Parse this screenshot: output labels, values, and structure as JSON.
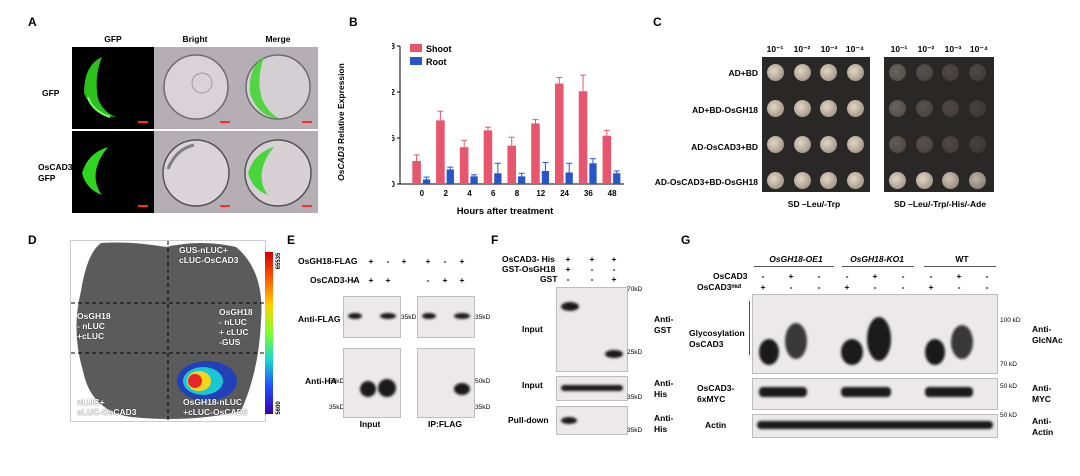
{
  "panels": {
    "a": "A",
    "b": "B",
    "c": "C",
    "d": "D",
    "e": "E",
    "f": "F",
    "g": "G"
  },
  "panel_a": {
    "columns": [
      "GFP",
      "Bright",
      "Merge"
    ],
    "rows": [
      "GFP",
      "OsCAD3-\nGFP"
    ],
    "colors": {
      "gfp": "#2fd61f",
      "scale_bar": "#ff2b2b"
    }
  },
  "chart_data": {
    "type": "bar",
    "title": "",
    "xlabel": "Hours after treatment",
    "ylabel": "OsCAD3 Relative Expression",
    "ylabel_italic_part": "OsCAD3",
    "ylabel_rest": " Relative Expression",
    "categories": [
      "0",
      "2",
      "4",
      "6",
      "8",
      "12",
      "24",
      "36",
      "48"
    ],
    "ylim": [
      0,
      0.018
    ],
    "yticks": [
      "0.000",
      "0.006",
      "0.012",
      "0.018"
    ],
    "ytick_values": [
      0,
      0.006,
      0.012,
      0.018
    ],
    "legend_position": "top-left",
    "series": [
      {
        "name": "Shoot",
        "color": "#e8566d",
        "values": [
          0.003,
          0.0083,
          0.0048,
          0.007,
          0.005,
          0.0079,
          0.0131,
          0.0121,
          0.0063
        ],
        "errors": [
          0.0008,
          0.0012,
          0.0009,
          0.0004,
          0.0011,
          0.0005,
          0.0008,
          0.0021,
          0.0007
        ]
      },
      {
        "name": "Root",
        "color": "#2855c9",
        "values": [
          0.0006,
          0.0019,
          0.001,
          0.0014,
          0.001,
          0.0017,
          0.0015,
          0.0027,
          0.0014
        ],
        "errors": [
          0.0003,
          0.0003,
          0.0002,
          0.0013,
          0.0004,
          0.0011,
          0.0012,
          0.0006,
          0.0003
        ]
      }
    ]
  },
  "panel_c": {
    "dilutions": [
      "10⁻¹",
      "10⁻²",
      "10⁻³",
      "10⁻⁴"
    ],
    "rows": [
      "AD+BD",
      "AD+BD-OsGH18",
      "AD-OsCAD3+BD",
      "AD-OsCAD3+BD-OsGH18"
    ],
    "media": [
      "SD –Leu/-Trp",
      "SD –Leu/-Trp/-His/-Ade"
    ]
  },
  "panel_d": {
    "top_right": "GUS-nLUC+\ncLUC-OsCAD3",
    "mid_left": "OsGH18\n- nLUC\n+cLUC",
    "mid_right": "OsGH18\n- nLUC\n+ cLUC\n-GUS",
    "bottom_left": "nLUC+\ncLUC-OsCAD3",
    "bottom_right": "OsGH18-nLUC\n+cLUC-OsCAD3",
    "colorbar_max": "65535",
    "colorbar_min": "5600"
  },
  "panel_e": {
    "row1_label": "OsGH18-FLAG",
    "row2_label": "OsCAD3-HA",
    "row1_signs": [
      "+",
      "-",
      "+",
      "+",
      "-",
      "+"
    ],
    "row2_signs": [
      "-",
      "+",
      "+",
      "-",
      "+",
      "+"
    ],
    "blot1_label": "Anti-FLAG",
    "blot2_label": "Anti-HA",
    "mw_35": "35kD",
    "mw_50": "50kD",
    "input": "Input",
    "ip": "IP:FLAG"
  },
  "panel_f": {
    "row1_label": "OsCAD3- His",
    "row2_label": "GST-OsGH18",
    "row3_label": "GST",
    "row1_signs": [
      "+",
      "+",
      "+"
    ],
    "row2_signs": [
      "+",
      "-",
      "-"
    ],
    "row3_signs": [
      "-",
      "-",
      "+"
    ],
    "mw_70": "70kD",
    "mw_25": "25kD",
    "mw_35": "35kD",
    "blots": [
      {
        "label": "Input",
        "anti": "Anti-\nGST"
      },
      {
        "label": "Input",
        "anti": "Anti-\nHis"
      },
      {
        "label": "Pull-down",
        "anti": "Anti-\nHis"
      }
    ]
  },
  "panel_g": {
    "groups": [
      "OsGH18-OE1",
      "OsGH18-KO1",
      "WT"
    ],
    "row1_label": "OsCAD3",
    "row2_label": "OsCAD3ᵐᵘᵗ",
    "row1_signs": [
      "-",
      "+",
      "-",
      "-",
      "+",
      "-",
      "-",
      "+",
      "-"
    ],
    "row2_signs": [
      "+",
      "-",
      "-",
      "+",
      "-",
      "-",
      "+",
      "-",
      "-"
    ],
    "blot1_label": "Glycosylation\nOsCAD3",
    "blot2_label": "OsCAD3-\n6xMYC",
    "blot3_label": "Actin",
    "mw_100": "100 kD",
    "mw_70": "70 kD",
    "mw_50a": "50 kD",
    "mw_50b": "50 kD",
    "anti1": "Anti-\nGlcNAc",
    "anti2": "Anti-\nMYC",
    "anti3": "Anti-\nActin"
  }
}
